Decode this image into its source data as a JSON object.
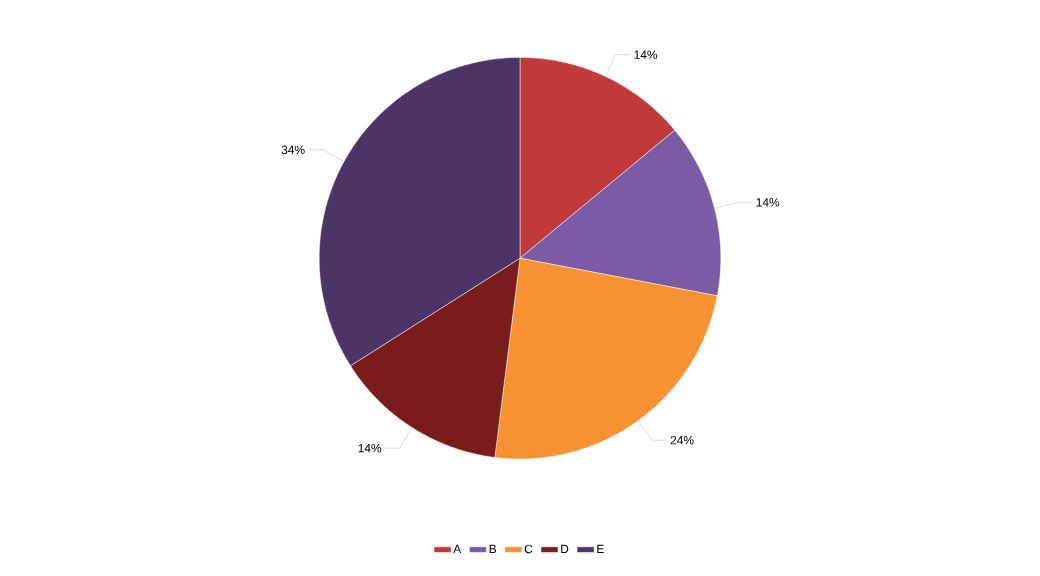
{
  "chart_data": {
    "type": "pie",
    "categories": [
      "A",
      "B",
      "C",
      "D",
      "E"
    ],
    "values": [
      14,
      14,
      24,
      14,
      34
    ],
    "colors": [
      "#c0393b",
      "#7b5aa6",
      "#f79232",
      "#7b1c1c",
      "#4a3566"
    ],
    "value_labels": [
      "14%",
      "14%",
      "24%",
      "14%",
      "34%"
    ],
    "legend": "bottom"
  }
}
